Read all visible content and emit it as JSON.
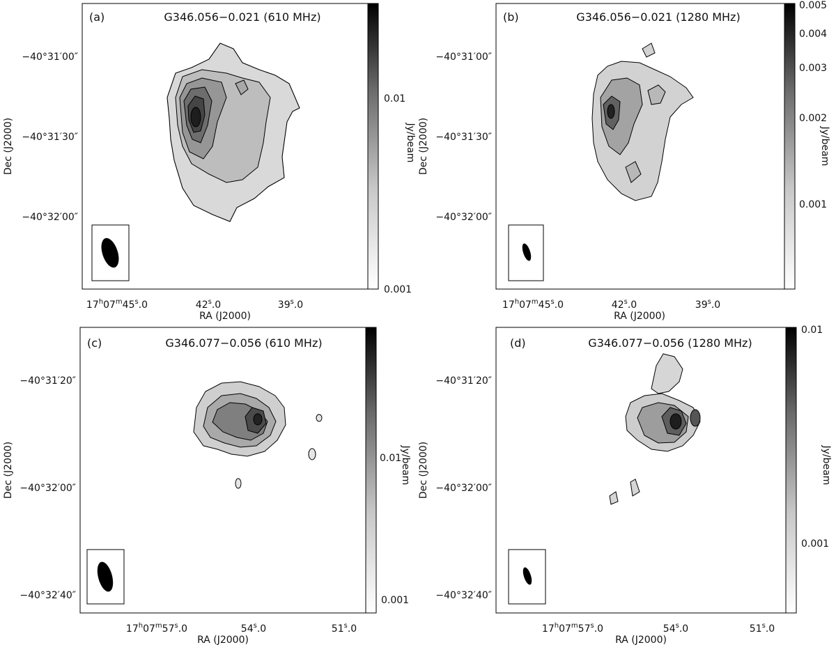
{
  "colorbar_unit": "Jy/beam",
  "chart_data": [
    {
      "type": "heatmap",
      "panel": "(a)",
      "title": "G346.056−0.021 (610 MHz)",
      "xlabel": "RA (J2000)",
      "ylabel": "Dec (J2000)",
      "x_ticks": [
        "17h07m45.0s",
        "42.0s",
        "39.0s"
      ],
      "x_tick_display": [
        {
          "pre": "17",
          "h": "h",
          "mid1": "07",
          "m": "m",
          "mid2": "45",
          "s": "s",
          "post": ".0"
        },
        {
          "pre": "",
          "h": "",
          "mid1": "",
          "m": "",
          "mid2": "42",
          "s": "s",
          "post": ".0"
        },
        {
          "pre": "",
          "h": "",
          "mid1": "",
          "m": "",
          "mid2": "39",
          "s": "s",
          "post": ".0"
        }
      ],
      "y_ticks": [
        "−40°31′00″",
        "−40°31′30″",
        "−40°32′00″"
      ],
      "colorbar_ticks": [
        "0.01",
        "0.001"
      ],
      "colorbar_range": [
        0.001,
        0.03
      ],
      "colorbar_scale": "log",
      "beam": {
        "note": "synthesized beam ellipse shown in lower-left box"
      },
      "contours": true
    },
    {
      "type": "heatmap",
      "panel": "(b)",
      "title": "G346.056−0.021 (1280 MHz)",
      "xlabel": "RA (J2000)",
      "ylabel": "Dec (J2000)",
      "x_ticks": [
        "17h07m45.0s",
        "42.0s",
        "39.0s"
      ],
      "x_tick_display": [
        {
          "pre": "17",
          "h": "h",
          "mid1": "07",
          "m": "m",
          "mid2": "45",
          "s": "s",
          "post": ".0"
        },
        {
          "pre": "",
          "h": "",
          "mid1": "",
          "m": "",
          "mid2": "42",
          "s": "s",
          "post": ".0"
        },
        {
          "pre": "",
          "h": "",
          "mid1": "",
          "m": "",
          "mid2": "39",
          "s": "s",
          "post": ".0"
        }
      ],
      "y_ticks": [
        "−40°31′00″",
        "−40°31′30″",
        "−40°32′00″"
      ],
      "colorbar_ticks": [
        "0.005",
        "0.004",
        "0.003",
        "0.002",
        "0.001"
      ],
      "colorbar_range": [
        0.0003,
        0.005
      ],
      "colorbar_scale": "log",
      "beam": {
        "note": "synthesized beam ellipse shown in lower-left box"
      },
      "contours": true
    },
    {
      "type": "heatmap",
      "panel": "(c)",
      "title": "G346.077−0.056 (610 MHz)",
      "xlabel": "RA (J2000)",
      "ylabel": "Dec (J2000)",
      "x_ticks": [
        "17h07m57.0s",
        "54.0s",
        "51.0s"
      ],
      "x_tick_display": [
        {
          "pre": "17",
          "h": "h",
          "mid1": "07",
          "m": "m",
          "mid2": "57",
          "s": "s",
          "post": ".0"
        },
        {
          "pre": "",
          "h": "",
          "mid1": "",
          "m": "",
          "mid2": "54",
          "s": "s",
          "post": ".0"
        },
        {
          "pre": "",
          "h": "",
          "mid1": "",
          "m": "",
          "mid2": "51",
          "s": "s",
          "post": ".0"
        }
      ],
      "y_ticks": [
        "−40°31′20″",
        "−40°32′00″",
        "−40°32′40″"
      ],
      "colorbar_ticks": [
        "0.01",
        "0.001"
      ],
      "colorbar_range": [
        0.0008,
        0.03
      ],
      "colorbar_scale": "log",
      "beam": {
        "note": "synthesized beam ellipse shown in lower-left box"
      },
      "contours": true
    },
    {
      "type": "heatmap",
      "panel": "(d)",
      "title": "G346.077−0.056 (1280 MHz)",
      "xlabel": "RA (J2000)",
      "ylabel": "Dec (J2000)",
      "x_ticks": [
        "17h07m57.0s",
        "54.0s",
        "51.0s"
      ],
      "x_tick_display": [
        {
          "pre": "17",
          "h": "h",
          "mid1": "07",
          "m": "m",
          "mid2": "57",
          "s": "s",
          "post": ".0"
        },
        {
          "pre": "",
          "h": "",
          "mid1": "",
          "m": "",
          "mid2": "54",
          "s": "s",
          "post": ".0"
        },
        {
          "pre": "",
          "h": "",
          "mid1": "",
          "m": "",
          "mid2": "51",
          "s": "s",
          "post": ".0"
        }
      ],
      "y_ticks": [
        "−40°31′20″",
        "−40°32′00″",
        "−40°32′40″"
      ],
      "colorbar_ticks": [
        "0.01",
        "0.001"
      ],
      "colorbar_range": [
        0.0003,
        0.01
      ],
      "colorbar_scale": "log",
      "beam": {
        "note": "synthesized beam ellipse shown in lower-left box"
      },
      "contours": true
    }
  ]
}
